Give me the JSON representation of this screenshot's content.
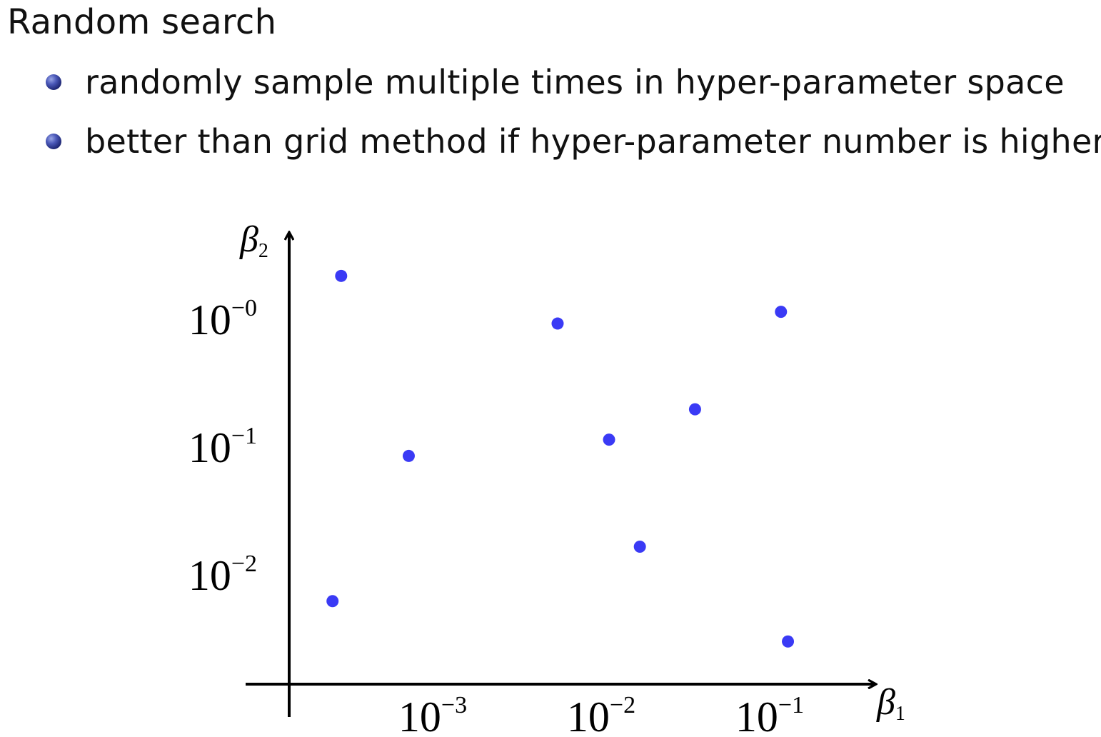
{
  "title": "Random search",
  "bullets": [
    "randomly sample multiple times in hyper-parameter space",
    "better than grid method if hyper-parameter number is higher"
  ],
  "chart_data": {
    "type": "scatter",
    "title": "",
    "xlabel": "β",
    "xlabel_sub": "1",
    "ylabel": "β",
    "ylabel_sub": "2",
    "xscale": "log",
    "yscale": "log",
    "x_ticks": [
      {
        "base": "10",
        "exp": "−3",
        "value": 0.001
      },
      {
        "base": "10",
        "exp": "−2",
        "value": 0.01
      },
      {
        "base": "10",
        "exp": "−1",
        "value": 0.1
      }
    ],
    "y_ticks": [
      {
        "base": "10",
        "exp": "−0",
        "value": 1
      },
      {
        "base": "10",
        "exp": "−1",
        "value": 0.1
      },
      {
        "base": "10",
        "exp": "−2",
        "value": 0.01
      }
    ],
    "point_color": "#3a3af5",
    "grid": false,
    "points": [
      {
        "x": 0.00027,
        "y": 2.1
      },
      {
        "x": 0.0052,
        "y": 0.89
      },
      {
        "x": 0.11,
        "y": 1.1
      },
      {
        "x": 0.034,
        "y": 0.19
      },
      {
        "x": 0.0105,
        "y": 0.11
      },
      {
        "x": 0.00068,
        "y": 0.082
      },
      {
        "x": 0.016,
        "y": 0.016
      },
      {
        "x": 0.00024,
        "y": 0.006
      },
      {
        "x": 0.121,
        "y": 0.0029
      }
    ]
  }
}
